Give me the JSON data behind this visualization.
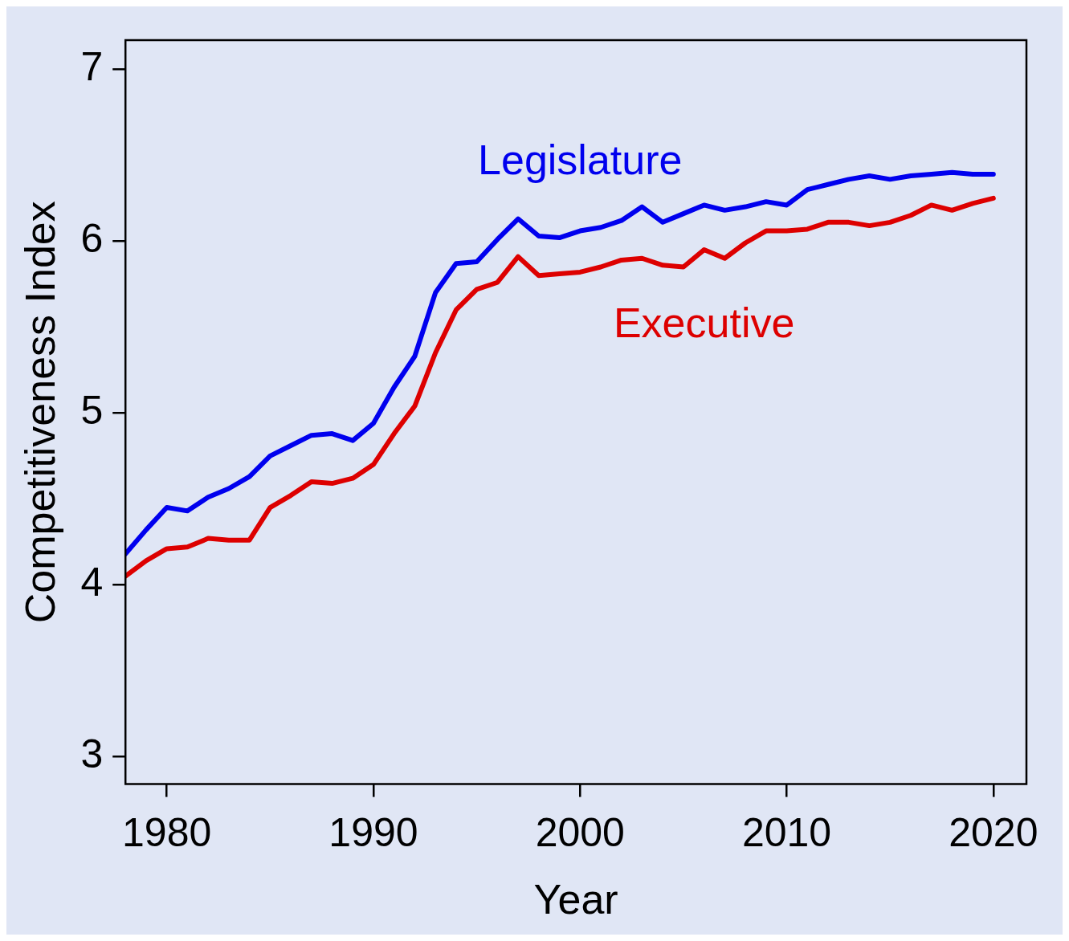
{
  "chart_data": {
    "type": "line",
    "xlabel": "Year",
    "ylabel": "Competitiveness Index",
    "x": [
      1978,
      1979,
      1980,
      1981,
      1982,
      1983,
      1984,
      1985,
      1986,
      1987,
      1988,
      1989,
      1990,
      1991,
      1992,
      1993,
      1994,
      1995,
      1996,
      1997,
      1998,
      1999,
      2000,
      2001,
      2002,
      2003,
      2004,
      2005,
      2006,
      2007,
      2008,
      2009,
      2010,
      2011,
      2012,
      2013,
      2014,
      2015,
      2016,
      2017,
      2018,
      2019,
      2020
    ],
    "series": [
      {
        "name": "Legislature",
        "color": "#0000ee",
        "values": [
          4.18,
          4.32,
          4.45,
          4.43,
          4.51,
          4.56,
          4.63,
          4.75,
          4.81,
          4.87,
          4.88,
          4.84,
          4.94,
          5.15,
          5.33,
          5.7,
          5.87,
          5.88,
          6.01,
          6.13,
          6.03,
          6.02,
          6.06,
          6.08,
          6.12,
          6.2,
          6.11,
          6.16,
          6.21,
          6.18,
          6.2,
          6.23,
          6.21,
          6.3,
          6.33,
          6.36,
          6.38,
          6.36,
          6.38,
          6.39,
          6.4,
          6.39,
          6.39
        ]
      },
      {
        "name": "Executive",
        "color": "#dd0000",
        "values": [
          4.05,
          4.14,
          4.21,
          4.22,
          4.27,
          4.26,
          4.26,
          4.45,
          4.52,
          4.6,
          4.59,
          4.62,
          4.7,
          4.88,
          5.04,
          5.35,
          5.6,
          5.72,
          5.76,
          5.91,
          5.8,
          5.81,
          5.82,
          5.85,
          5.89,
          5.9,
          5.86,
          5.85,
          5.95,
          5.9,
          5.99,
          6.06,
          6.06,
          6.07,
          6.11,
          6.11,
          6.09,
          6.11,
          6.15,
          6.21,
          6.18,
          6.22,
          6.25
        ]
      }
    ],
    "xlim": [
      1978,
      2021.6
    ],
    "xticks": [
      1980,
      1990,
      2000,
      2010,
      2020
    ],
    "ylim": [
      2.84,
      7.17
    ],
    "yticks": [
      3,
      4,
      5,
      6,
      7
    ],
    "grid": false,
    "legend": false,
    "marker": "none",
    "line_style": "solid"
  }
}
